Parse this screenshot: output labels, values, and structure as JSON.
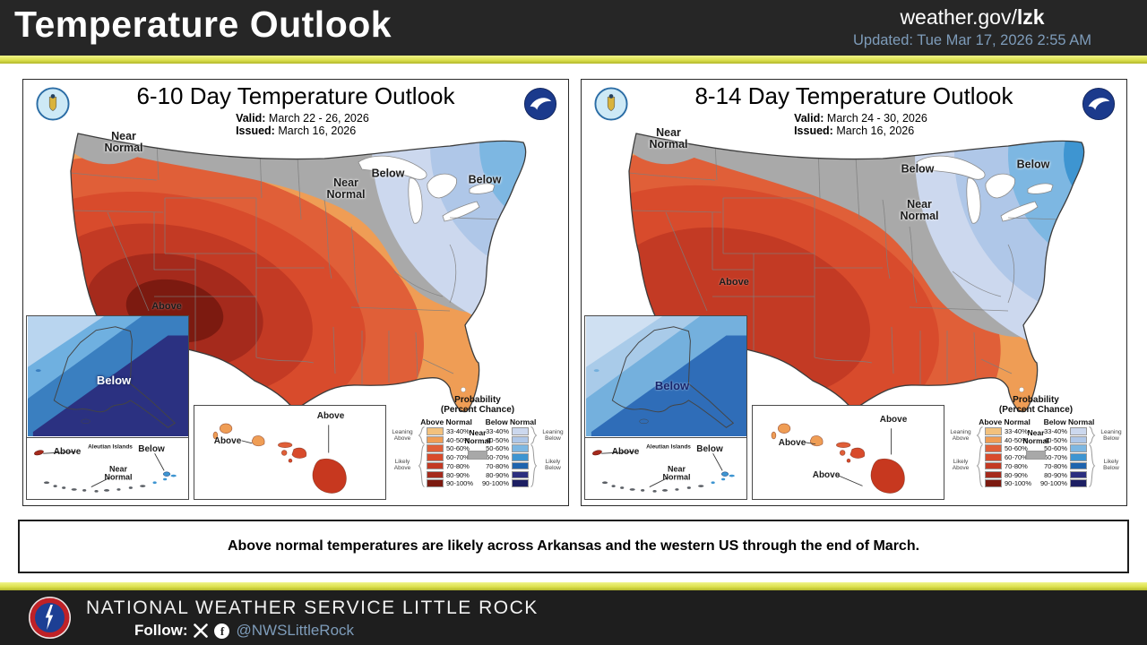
{
  "header": {
    "title": "Temperature Outlook",
    "site_prefix": "weather.gov/",
    "site_suffix": "lzk",
    "updated": "Updated: Tue Mar 17, 2026 2:55 AM",
    "bar_color": "#262626",
    "accent_yellow": "#dde14f",
    "updated_color": "#7e9cba"
  },
  "panels": [
    {
      "title": "6-10 Day Temperature Outlook",
      "valid_label": "Valid:",
      "valid_value": "March 22 - 26, 2026",
      "issued_label": "Issued:",
      "issued_value": "March 16, 2026",
      "conus_labels": {
        "nw": "Near\nNormal",
        "wi": "Near\nNormal",
        "mi": "Below",
        "ne": "Below",
        "center": "Above"
      },
      "alaska_label": "Below",
      "alaska_colors": [
        "#b9d5ef",
        "#6fb0e0",
        "#3a7fc0",
        "#2b3181"
      ],
      "hawaii_labels": [
        "Above",
        "Above"
      ]
    },
    {
      "title": "8-14 Day Temperature Outlook",
      "valid_label": "Valid:",
      "valid_value": "March 24 - 30, 2026",
      "issued_label": "Issued:",
      "issued_value": "March 16, 2026",
      "conus_labels": {
        "nw": "Near\nNormal",
        "upper": "Below",
        "mi": "Near\nNormal",
        "maine": "Below",
        "center": "Above"
      },
      "alaska_label": "Below",
      "alaska_colors": [
        "#cfe0f2",
        "#a9cbe9",
        "#74b0dd",
        "#2f6db8"
      ],
      "hawaii_labels": [
        "Above",
        "Above",
        "Above"
      ]
    }
  ],
  "insets": {
    "aleutian_above": "Above",
    "aleutian_name": "Aleutian Islands",
    "aleutian_near": "Near\nNormal",
    "aleutian_below": "Below"
  },
  "legend": {
    "title_line1": "Probability",
    "title_line2": "(Percent Chance)",
    "above_header": "Above Normal",
    "below_header": "Below Normal",
    "near_label": "Near\nNormal",
    "ranges": [
      "33-40%",
      "40-50%",
      "50-60%",
      "60-70%",
      "70-80%",
      "80-90%",
      "90-100%"
    ],
    "above_colors": [
      "#f2c17d",
      "#ef9d55",
      "#e05f38",
      "#d84b2c",
      "#c33a24",
      "#a52a1c",
      "#7c1a10"
    ],
    "below_colors": [
      "#ccd8ee",
      "#afc7e8",
      "#7db7e2",
      "#3e95d1",
      "#1f64ae",
      "#2c2f7f",
      "#1d1f63"
    ],
    "near_color": "#a8a8a8",
    "gray_map": "#a9a9a9",
    "leaning_above": "Leaning\nAbove",
    "likely_above": "Likely\nAbove",
    "leaning_below": "Leaning\nBelow",
    "likely_below": "Likely\nBelow"
  },
  "summary": {
    "text": "Above normal temperatures are likely across Arkansas and the western US through the end of March."
  },
  "footer": {
    "org": "NATIONAL WEATHER SERVICE LITTLE ROCK",
    "follow": "Follow:",
    "handle": "@NWSLittleRock"
  }
}
